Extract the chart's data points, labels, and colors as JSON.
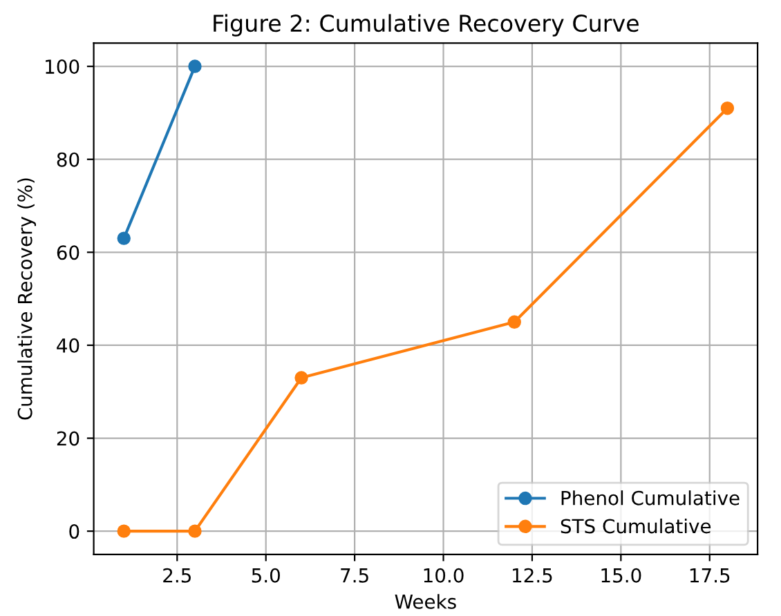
{
  "chart_data": {
    "type": "line",
    "title": "Figure 2: Cumulative Recovery Curve",
    "xlabel": "Weeks",
    "ylabel": "Cumulative Recovery (%)",
    "series": [
      {
        "name": "Phenol Cumulative",
        "color": "#1f77b4",
        "x": [
          1,
          3
        ],
        "values": [
          63,
          100
        ]
      },
      {
        "name": "STS Cumulative",
        "color": "#ff7f0e",
        "x": [
          1,
          3,
          6,
          12,
          18
        ],
        "values": [
          0,
          0,
          33,
          45,
          91
        ]
      }
    ],
    "xlim": [
      0.15,
      18.85
    ],
    "xticks": [
      {
        "value": 2.5,
        "label": "2.5"
      },
      {
        "value": 5,
        "label": "5.0"
      },
      {
        "value": 7.5,
        "label": "7.5"
      },
      {
        "value": 10,
        "label": "10.0"
      },
      {
        "value": 12.5,
        "label": "12.5"
      },
      {
        "value": 15,
        "label": "15.0"
      },
      {
        "value": 17.5,
        "label": "17.5"
      }
    ],
    "ylim": [
      -5,
      105
    ],
    "yticks": [
      0,
      20,
      40,
      60,
      80,
      100
    ],
    "grid": true,
    "legend": "lower right",
    "marker": "circle",
    "line_style": "solid"
  }
}
